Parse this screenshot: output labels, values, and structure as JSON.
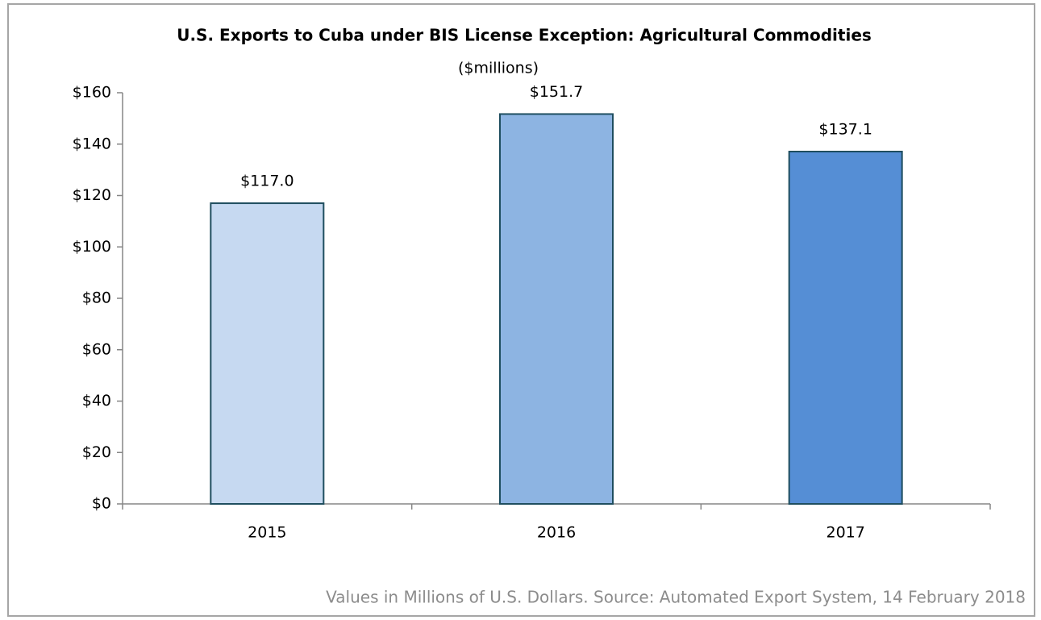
{
  "chart_data": {
    "type": "bar",
    "title": "U.S. Exports to Cuba under BIS License Exception: Agricultural Commodities",
    "subtitle": "($millions)",
    "note": "Values in Millions of U.S. Dollars. Source: Automated Export System, 14 February 2018",
    "categories": [
      "2015",
      "2016",
      "2017"
    ],
    "values": [
      117.0,
      151.7,
      137.1
    ],
    "value_labels": [
      "$117.0",
      "$151.7",
      "$137.1"
    ],
    "colors": [
      "#c6d9f1",
      "#8db4e2",
      "#558ed5"
    ],
    "edgecolor": "#1f4e5f",
    "ylim": [
      0,
      160
    ],
    "yticks": [
      {
        "value": 0,
        "label": "$0"
      },
      {
        "value": 20,
        "label": "$20"
      },
      {
        "value": 40,
        "label": "$40"
      },
      {
        "value": 60,
        "label": "$60"
      },
      {
        "value": 80,
        "label": "$80"
      },
      {
        "value": 100,
        "label": "$100"
      },
      {
        "value": 120,
        "label": "$120"
      },
      {
        "value": 140,
        "label": "$140"
      },
      {
        "value": 160,
        "label": "$160"
      }
    ],
    "grid": false
  }
}
